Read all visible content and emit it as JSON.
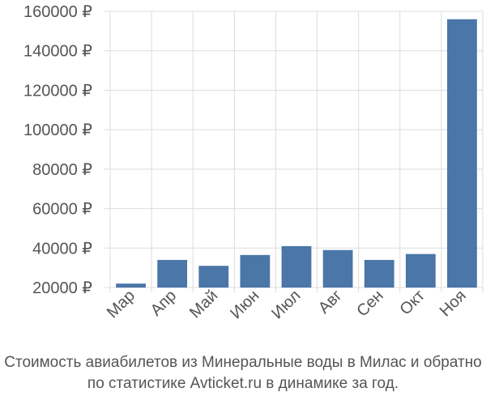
{
  "colors": {
    "bar": "#4a76a8",
    "grid": "#dddddd",
    "axis": "#cccccc",
    "text": "#555555"
  },
  "chart_data": {
    "type": "bar",
    "categories": [
      "Мар",
      "Апр",
      "Май",
      "Июн",
      "Июл",
      "Авг",
      "Сен",
      "Окт",
      "Ноя"
    ],
    "values": [
      22000,
      34000,
      31000,
      36500,
      41000,
      39000,
      34000,
      37000,
      156000
    ],
    "ylim": [
      20000,
      160000
    ],
    "yticks": [
      20000,
      40000,
      60000,
      80000,
      100000,
      120000,
      140000,
      160000
    ],
    "ytick_labels": [
      "20000 ₽",
      "40000 ₽",
      "60000 ₽",
      "80000 ₽",
      "100000 ₽",
      "120000 ₽",
      "140000 ₽",
      "160000 ₽"
    ],
    "grid": true,
    "legend": "none"
  },
  "caption": {
    "line1": "Стоимость авиабилетов из Минеральные воды в Милас и обратно",
    "line2": "по статистике Avticket.ru в динамике за год."
  }
}
